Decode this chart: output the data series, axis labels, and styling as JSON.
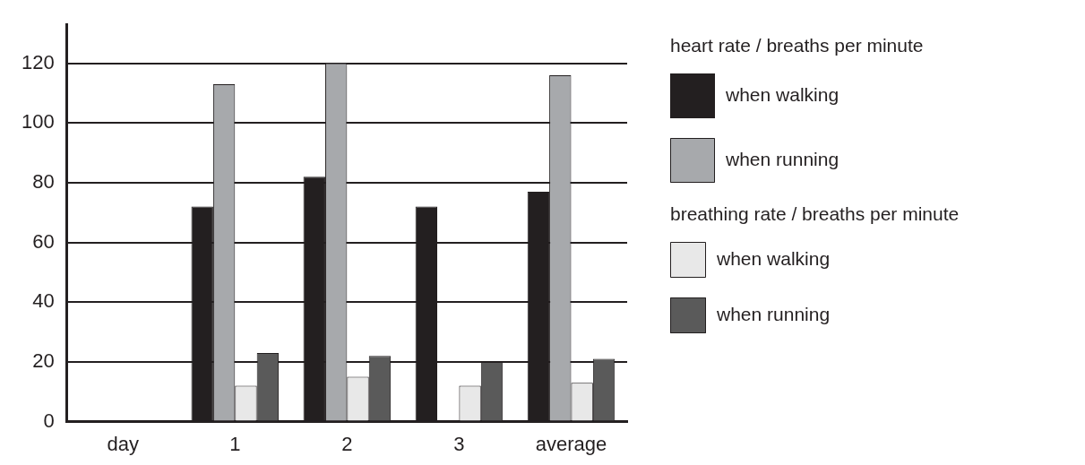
{
  "chart_data": {
    "type": "bar",
    "categories": [
      "day",
      "1",
      "2",
      "3",
      "average"
    ],
    "series": [
      {
        "name": "when walking",
        "color": "#231f20",
        "values": [
          null,
          72,
          82,
          72,
          77
        ]
      },
      {
        "name": "when running",
        "color": "#a7a9ac",
        "values": [
          null,
          113,
          120,
          null,
          116
        ]
      },
      {
        "name": "when walking",
        "color": "#e8e8e8",
        "values": [
          null,
          12,
          15,
          12,
          13
        ]
      },
      {
        "name": "when running",
        "color": "#5a5a5a",
        "values": [
          null,
          23,
          22,
          20,
          21
        ]
      }
    ],
    "annotations": [
      "heart rate / breaths per minute",
      "breathing rate / breaths per minute"
    ],
    "ylim": [
      0,
      133
    ],
    "yticks": [
      0,
      20,
      40,
      60,
      80,
      100,
      120
    ],
    "grid": "y",
    "legend": "right"
  }
}
